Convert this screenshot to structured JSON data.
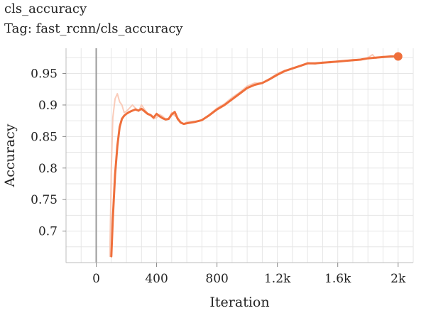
{
  "header": {
    "title": "cls_accuracy",
    "tag": "Tag: fast_rcnn/cls_accuracy"
  },
  "chart_data": {
    "type": "line",
    "title": "cls_accuracy",
    "xlabel": "Iteration",
    "ylabel": "Accuracy",
    "xlim": [
      -200,
      2100
    ],
    "ylim": [
      0.65,
      0.99
    ],
    "x_ticks": [
      0,
      400,
      800,
      1200,
      1600,
      2000
    ],
    "x_tick_labels": [
      "0",
      "400",
      "800",
      "1.2k",
      "1.6k",
      "2k"
    ],
    "y_ticks": [
      0.7,
      0.75,
      0.8,
      0.85,
      0.9,
      0.95
    ],
    "y_tick_labels": [
      "0.7",
      "0.75",
      "0.8",
      "0.85",
      "0.9",
      "0.95"
    ],
    "grid": true,
    "colors": {
      "smoothed": "#ef6f3b",
      "raw": "#f9c3ae",
      "zero_line": "#9a9a9a",
      "grid": "#e6e6e6"
    },
    "series": [
      {
        "role": "raw",
        "x": [
          90,
          100,
          110,
          125,
          140,
          155,
          170,
          185,
          200,
          220,
          240,
          260,
          280,
          300,
          320,
          340,
          360,
          380,
          400,
          420,
          440,
          460,
          480,
          500,
          520,
          540,
          560,
          580,
          600,
          650,
          700,
          750,
          800,
          850,
          900,
          950,
          1000,
          1050,
          1100,
          1150,
          1200,
          1250,
          1300,
          1350,
          1400,
          1450,
          1500,
          1550,
          1600,
          1650,
          1700,
          1750,
          1800,
          1830,
          1850,
          1900,
          1950,
          2000
        ],
        "y": [
          0.66,
          0.8,
          0.88,
          0.91,
          0.918,
          0.905,
          0.9,
          0.888,
          0.89,
          0.895,
          0.9,
          0.895,
          0.89,
          0.9,
          0.893,
          0.887,
          0.885,
          0.878,
          0.88,
          0.885,
          0.882,
          0.878,
          0.878,
          0.888,
          0.883,
          0.88,
          0.873,
          0.87,
          0.873,
          0.873,
          0.876,
          0.885,
          0.895,
          0.902,
          0.912,
          0.92,
          0.93,
          0.935,
          0.935,
          0.942,
          0.95,
          0.955,
          0.958,
          0.962,
          0.967,
          0.965,
          0.968,
          0.967,
          0.97,
          0.97,
          0.972,
          0.972,
          0.975,
          0.98,
          0.974,
          0.977,
          0.976,
          0.978
        ]
      },
      {
        "role": "smoothed",
        "x": [
          100,
          110,
          125,
          140,
          155,
          170,
          185,
          200,
          220,
          240,
          260,
          280,
          300,
          320,
          340,
          360,
          380,
          400,
          420,
          440,
          460,
          480,
          500,
          520,
          540,
          560,
          580,
          600,
          650,
          700,
          750,
          800,
          850,
          900,
          950,
          1000,
          1050,
          1100,
          1150,
          1200,
          1250,
          1300,
          1350,
          1400,
          1450,
          1500,
          1550,
          1600,
          1650,
          1700,
          1750,
          1800,
          1850,
          1900,
          1950,
          2000
        ],
        "y": [
          0.66,
          0.72,
          0.79,
          0.835,
          0.865,
          0.878,
          0.883,
          0.886,
          0.889,
          0.891,
          0.893,
          0.891,
          0.894,
          0.89,
          0.886,
          0.884,
          0.88,
          0.886,
          0.882,
          0.879,
          0.877,
          0.878,
          0.885,
          0.889,
          0.878,
          0.872,
          0.87,
          0.871,
          0.873,
          0.876,
          0.884,
          0.893,
          0.9,
          0.909,
          0.918,
          0.927,
          0.932,
          0.935,
          0.941,
          0.948,
          0.954,
          0.958,
          0.962,
          0.966,
          0.966,
          0.967,
          0.968,
          0.969,
          0.97,
          0.971,
          0.972,
          0.974,
          0.975,
          0.976,
          0.977,
          0.977
        ]
      }
    ]
  }
}
